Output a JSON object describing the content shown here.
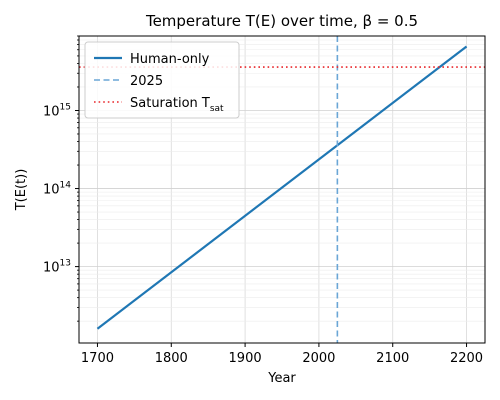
{
  "chart_data": {
    "type": "line",
    "title": "Temperature T(E) over time, β = 0.5",
    "xlabel": "Year",
    "ylabel": "T(E(t))",
    "yscale": "log",
    "xlim": [
      1675,
      2225
    ],
    "ylim": [
      1050000000000.0,
      9000000000000000.0
    ],
    "xticks": [
      1700,
      1800,
      1900,
      2000,
      2100,
      2200
    ],
    "yticks": [
      {
        "value": 10000000000000.0,
        "label": "10^13"
      },
      {
        "value": 100000000000000.0,
        "label": "10^14"
      },
      {
        "value": 1000000000000000.0,
        "label": "10^15"
      }
    ],
    "grid": true,
    "legend_position": "top-left",
    "series": [
      {
        "name": "Human-only",
        "kind": "line",
        "color": "#1f77b4",
        "x": [
          1700,
          2200
        ],
        "y": [
          1600000000000.0,
          6600000000000000.0
        ]
      },
      {
        "name": "2025",
        "kind": "vline",
        "color": "#6aa6d6",
        "x": 2025
      },
      {
        "name": "Saturation T_sat",
        "kind": "hline",
        "color": "#e8262a",
        "y": 3600000000000000.0
      }
    ]
  }
}
